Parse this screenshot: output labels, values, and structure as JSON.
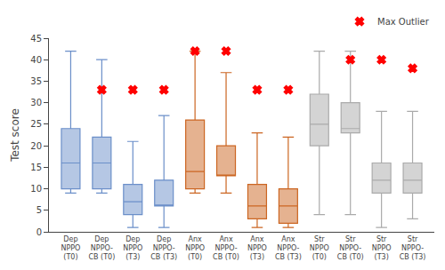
{
  "chart_data": {
    "type": "box",
    "categories": [
      "Dep\nNPPO\n(T0)",
      "Dep\nNPPO-\nCB (T0)",
      "Dep\nNPPO\n(T3)",
      "Dep\nNPPO-\nCB (T3)",
      "Anx\nNPPO\n(T0)",
      "Anx\nNPPO-\nCB (T0)",
      "Anx\nNPPO\n(T3)",
      "Anx\nNPPO-\nCB (T3)",
      "Str\nNPPO\n(T0)",
      "Str\nNPPO-\nCB (T0)",
      "Str\nNPPO\n(T3)",
      "Str\nNPPO-\nCB (T3)"
    ],
    "whislo": [
      9,
      9,
      1,
      1,
      9,
      9,
      1,
      1,
      4,
      4,
      1,
      3
    ],
    "q1": [
      10,
      10,
      4,
      6,
      10,
      13,
      3,
      2,
      20,
      23,
      9,
      9
    ],
    "median": [
      16,
      16,
      7,
      6,
      14,
      13,
      6,
      6,
      25,
      24,
      12,
      12
    ],
    "q3": [
      24,
      22,
      11,
      12,
      26,
      20,
      11,
      10,
      32,
      30,
      16,
      16
    ],
    "whishi": [
      42,
      40,
      21,
      27,
      42,
      37,
      23,
      22,
      42,
      42,
      28,
      28
    ],
    "colors": [
      "#6b8fc9",
      "#6b8fc9",
      "#6b8fc9",
      "#6b8fc9",
      "#cc6622",
      "#cc6622",
      "#cc6622",
      "#cc6622",
      "#aaaaaa",
      "#aaaaaa",
      "#aaaaaa",
      "#aaaaaa"
    ],
    "series": [
      {
        "name": "Max Outlier",
        "type": "scatter",
        "color": "red",
        "marker": "x",
        "values": [
          null,
          33,
          33,
          33,
          42,
          42,
          33,
          33,
          null,
          40,
          40,
          38
        ]
      }
    ],
    "ylabel": "Test score",
    "ylim": [
      0,
      45
    ],
    "yticks": [
      0,
      5,
      10,
      15,
      20,
      25,
      30,
      35,
      40,
      45
    ],
    "grid": false,
    "legend": "upper right"
  }
}
